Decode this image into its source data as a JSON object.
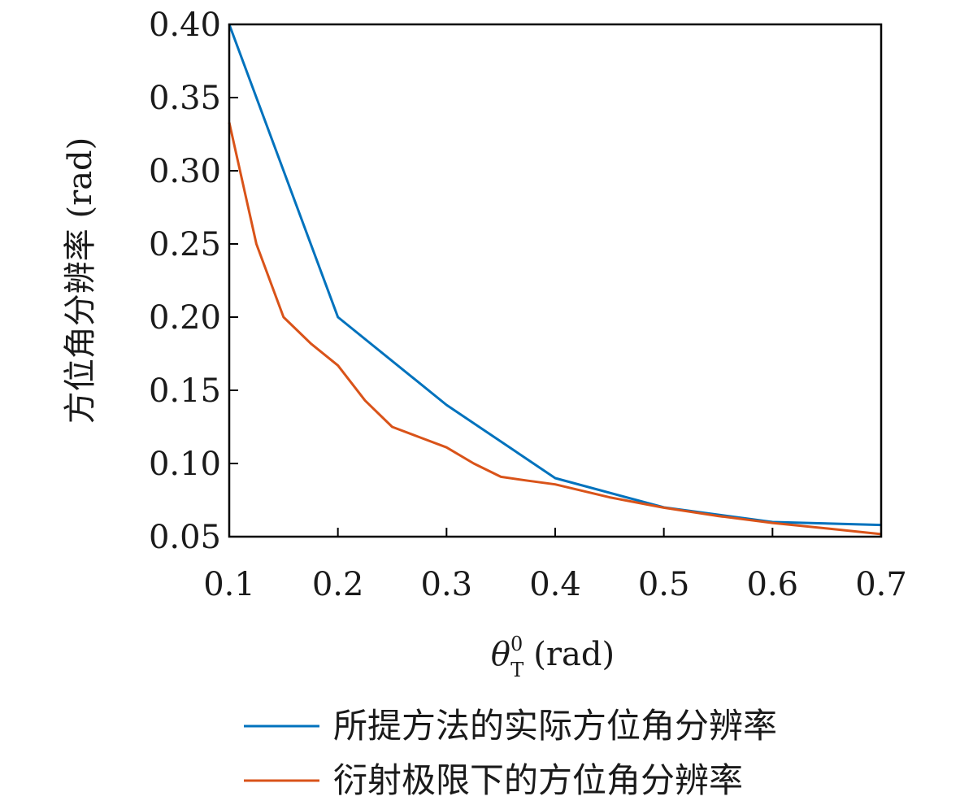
{
  "chart_data": {
    "type": "line",
    "xlabel": {
      "symbol": "θ",
      "superscript": "0",
      "subscript": "T",
      "unit": "(rad)"
    },
    "ylabel": "方位角分辨率 (rad)",
    "xlim": [
      0.1,
      0.7
    ],
    "ylim": [
      0.05,
      0.4
    ],
    "x_ticks": [
      "0.1",
      "0.2",
      "0.3",
      "0.4",
      "0.5",
      "0.6",
      "0.7"
    ],
    "y_ticks": [
      "0.05",
      "0.10",
      "0.15",
      "0.20",
      "0.25",
      "0.30",
      "0.35",
      "0.40"
    ],
    "grid": false,
    "legend_position": "bottom-right",
    "series": [
      {
        "name": "所提方法的实际方位角分辨率",
        "color": "#0072BD",
        "x": [
          0.1,
          0.2,
          0.3,
          0.4,
          0.5,
          0.6,
          0.7
        ],
        "y": [
          0.4,
          0.2,
          0.14,
          0.09,
          0.07,
          0.06,
          0.058
        ]
      },
      {
        "name": "衍射极限下的方位角分辨率",
        "color": "#D95319",
        "x": [
          0.1,
          0.125,
          0.15,
          0.175,
          0.2,
          0.225,
          0.25,
          0.275,
          0.3,
          0.325,
          0.35,
          0.375,
          0.4,
          0.45,
          0.5,
          0.55,
          0.6,
          0.65,
          0.7
        ],
        "y": [
          0.333,
          0.25,
          0.2,
          0.182,
          0.167,
          0.143,
          0.125,
          0.118,
          0.111,
          0.1,
          0.0909,
          0.0882,
          0.0857,
          0.0769,
          0.0698,
          0.0641,
          0.0594,
          0.0556,
          0.0517
        ]
      }
    ]
  }
}
